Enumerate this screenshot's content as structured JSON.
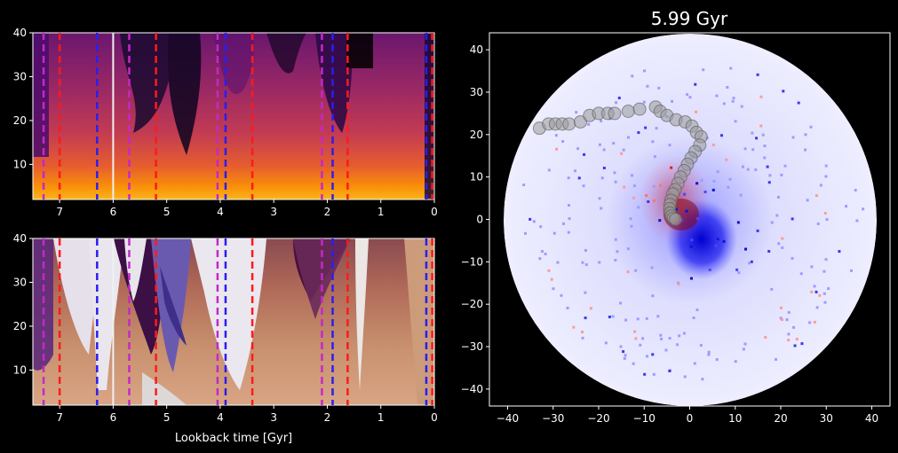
{
  "chart_data": [
    {
      "type": "heatmap",
      "panel": "top-left",
      "colormap": "inferno",
      "xlim": [
        7.5,
        0
      ],
      "ylim": [
        2,
        40
      ],
      "xticks": [
        7,
        6,
        5,
        4,
        3,
        2,
        1,
        0
      ],
      "yticks": [
        10,
        20,
        30,
        40
      ],
      "xlabel": "",
      "ylabel": "",
      "white_solid_line_x": [
        6.0
      ],
      "red_dashed_lines_x": [
        7.0,
        5.2,
        3.4,
        1.62,
        0.04
      ],
      "blue_dashed_lines_x": [
        6.3,
        3.9,
        1.9,
        0.15
      ],
      "purple_dashed_lines_x": [
        7.3,
        5.7,
        4.05,
        2.1
      ]
    },
    {
      "type": "heatmap",
      "panel": "bottom-left",
      "colormap": "twilight",
      "xlim": [
        7.5,
        0
      ],
      "ylim": [
        2,
        40
      ],
      "xticks": [
        7,
        6,
        5,
        4,
        3,
        2,
        1,
        0
      ],
      "yticks": [
        10,
        20,
        30,
        40
      ],
      "xlabel": "Lookback time [Gyr]",
      "ylabel": "",
      "white_solid_line_x": [
        6.0
      ],
      "red_dashed_lines_x": [
        7.0,
        5.2,
        3.4,
        1.62,
        0.04
      ],
      "blue_dashed_lines_x": [
        6.3,
        3.9,
        1.9,
        0.15
      ],
      "purple_dashed_lines_x": [
        7.3,
        5.7,
        4.05,
        2.1
      ]
    },
    {
      "type": "heatmap",
      "panel": "right",
      "title": "5.99 Gyr",
      "colormap": "seismic",
      "xlim": [
        -44,
        44
      ],
      "ylim": [
        -44,
        44
      ],
      "xticks": [
        -40,
        -30,
        -20,
        -10,
        0,
        10,
        20,
        30,
        40
      ],
      "yticks": [
        -40,
        -30,
        -20,
        -10,
        0,
        10,
        20,
        30,
        40
      ],
      "disk_radius": 40,
      "orbit_track": {
        "x": [
          -33,
          -31,
          -29.5,
          -28,
          -26.5,
          -24,
          -22,
          -20,
          -18,
          -16.5,
          -13.5,
          -11,
          -7.5,
          -6.5,
          -5,
          -3,
          -1,
          0.5,
          1.5,
          2.5,
          2.2,
          1.2,
          0.3,
          -0.5,
          -1.2,
          -2,
          -2.6,
          -3.2,
          -3.7,
          -4.1,
          -4.3,
          -4.4,
          -4.3,
          -4,
          -3.6,
          -3.1
        ],
        "y": [
          21.5,
          22.5,
          22.5,
          22.5,
          22.5,
          23,
          24.5,
          25,
          25,
          25,
          25.5,
          26,
          26.5,
          25.5,
          24.5,
          23.5,
          23,
          22,
          20.5,
          19.5,
          17.5,
          16,
          14.5,
          13,
          11.5,
          10,
          8.5,
          7,
          6,
          4.5,
          3.5,
          2.5,
          1.5,
          0.8,
          0.3,
          0
        ]
      }
    }
  ]
}
